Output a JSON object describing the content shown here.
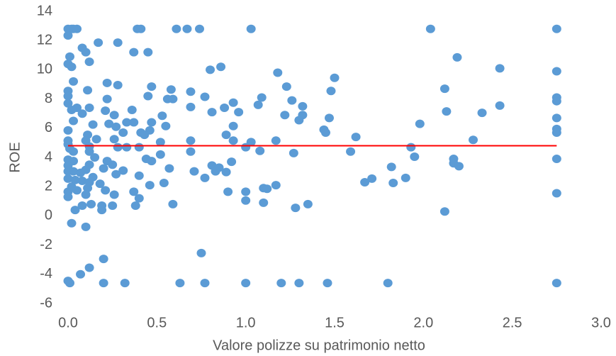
{
  "chart_data": {
    "type": "scatter",
    "x_label": "Valore polizze su patrimonio netto",
    "y_label": "ROE",
    "color": "#5b9bd5",
    "x": [
      0,
      0.02,
      0.03,
      0.05,
      0.39,
      0.41,
      0.61,
      0.67,
      0.74,
      1.03,
      2.04,
      2.75,
      0,
      0.17,
      0.28,
      0.08,
      0.1,
      0.37,
      0.45,
      0.01,
      0.12,
      0,
      0.02,
      0.86,
      0.8,
      2.19,
      2.43,
      2.75,
      1.18,
      1.5,
      0.03,
      0.22,
      0.28,
      1.23,
      0.47,
      0,
      0.11,
      0.58,
      0.69,
      1.48,
      2.12,
      0.45,
      0.77,
      0,
      0.22,
      0.56,
      0.59,
      1.09,
      2.75,
      2.75,
      0.93,
      0,
      1.26,
      1.32,
      2.43,
      0.05,
      0.12,
      0.36,
      0.69,
      0.88,
      1.07,
      0.02,
      0.21,
      2.13,
      2.33,
      0.08,
      0.81,
      0.96,
      0.53,
      1.22,
      1.32,
      0.26,
      0.03,
      1.47,
      2.75,
      1.3,
      0.33,
      0.37,
      0.47,
      0.14,
      0.23,
      0.55,
      1.98,
      0.93,
      0.27,
      0,
      2.75,
      2.75,
      1.44,
      1.45,
      0.46,
      0.31,
      0.41,
      0.11,
      0.43,
      0.89,
      1.62,
      0.16,
      0.26,
      0,
      0.1,
      0.52,
      0.69,
      0.93,
      1.03,
      1.17,
      2.28,
      0,
      0.12,
      0.28,
      0.33,
      0.4,
      1,
      1.93,
      0.01,
      0.03,
      0.12,
      0.69,
      1.08,
      1.27,
      1.59,
      0.52,
      0.15,
      1.95,
      0,
      0.44,
      2.17,
      2.75,
      0.03,
      0.22,
      0.47,
      0.92,
      2.17,
      0.12,
      0.25,
      0.81,
      2.2,
      0,
      1.82,
      0.2,
      0.57,
      0.85,
      0.1,
      0.31,
      0.71,
      0,
      0.03,
      0.83,
      0.89,
      0.27,
      0.07,
      0.4,
      0.14,
      0.77,
      1.71,
      0,
      1.9,
      0.04,
      0.08,
      0.12,
      0.54,
      1.67,
      1.83,
      1.17,
      0.18,
      0.46,
      0.02,
      1.1,
      1.12,
      0.11,
      0.21,
      0.37,
      0.9,
      1,
      0,
      0.05,
      2.75,
      0.26,
      0.1,
      0,
      0.4,
      1,
      1.1,
      1.35,
      0.59,
      0.08,
      0.13,
      0.19,
      0.38,
      0.25,
      1.28,
      0.04,
      0.19,
      2.12,
      0.02,
      0.1,
      0.75,
      0.2,
      0.12,
      0.07,
      0,
      0.01,
      0.2,
      0.32,
      0.63,
      0.77,
      1,
      1.2,
      1.3,
      1.46,
      1.8,
      2.75
    ],
    "values": [
      12.8,
      12.8,
      12.8,
      12.8,
      12.8,
      12.8,
      12.8,
      12.8,
      12.8,
      12.8,
      12.8,
      12.8,
      12.35,
      11.86,
      11.86,
      11.5,
      11.2,
      11.2,
      11.2,
      10.9,
      10.55,
      10.4,
      10.2,
      10.2,
      10,
      10.85,
      10.1,
      9.9,
      9.8,
      9.45,
      9.2,
      9.1,
      8.95,
      8.85,
      8.85,
      8.55,
      8.6,
      8.65,
      8.5,
      8.55,
      8.7,
      8.2,
      8.15,
      8.2,
      8,
      8,
      8,
      8.1,
      8.1,
      7.85,
      7.75,
      7.7,
      7.9,
      7.5,
      7.55,
      7.4,
      7.4,
      7.25,
      7.45,
      7.4,
      7.6,
      7.25,
      7.2,
      7.15,
      7.05,
      7,
      7.1,
      7.1,
      6.85,
      6.9,
      6.9,
      6.9,
      6.5,
      6.7,
      6.7,
      6.55,
      6.4,
      6.4,
      6.4,
      6.25,
      6.3,
      6.15,
      6.3,
      6.15,
      6.1,
      5.85,
      5.95,
      5.7,
      5.9,
      5.7,
      5.85,
      5.7,
      5.7,
      5.55,
      5.55,
      5.55,
      5.4,
      5.25,
      5.25,
      5.15,
      5.15,
      5.05,
      5.15,
      5.15,
      5.05,
      5.15,
      5.2,
      4.9,
      4.75,
      4.7,
      4.7,
      4.7,
      4.7,
      4.7,
      4.6,
      4.4,
      4.4,
      4.4,
      4.45,
      4.3,
      4.4,
      4.2,
      4,
      4.05,
      3.85,
      3.9,
      3.9,
      3.9,
      3.75,
      3.75,
      3.75,
      3.7,
      3.6,
      3.5,
      3.5,
      3.45,
      3.4,
      3.45,
      3.35,
      3.25,
      3.25,
      3.3,
      3.15,
      3.1,
      3.05,
      3.05,
      3.05,
      3.05,
      3,
      2.85,
      2.95,
      2.75,
      2.65,
      2.6,
      2.55,
      2.55,
      2.6,
      2.45,
      2.4,
      2.3,
      2.25,
      2.3,
      2.25,
      2.1,
      2.2,
      2.1,
      2,
      1.9,
      1.85,
      1.9,
      1.75,
      1.65,
      1.65,
      1.65,
      1.65,
      1.75,
      1.55,
      1.45,
      1.45,
      1.3,
      1.2,
      1.05,
      0.9,
      0.8,
      0.8,
      0.7,
      0.8,
      0.7,
      0.7,
      0.7,
      0.55,
      0.4,
      0.4,
      0.3,
      -0.5,
      -0.75,
      -2.55,
      -2.95,
      -3.55,
      -4,
      -4.45,
      -4.6,
      -4.6,
      -4.6,
      -4.6,
      -4.6,
      -4.6,
      -4.6,
      -4.6,
      -4.6,
      -4.6,
      -4.6
    ],
    "reference_line": {
      "y": 4.8,
      "x": [
        0,
        2.75
      ],
      "color": "#ff0000"
    },
    "xlim": [
      0,
      3
    ],
    "ylim": [
      -6,
      14
    ],
    "xticks": [
      {
        "value": 0,
        "label": "0.0"
      },
      {
        "value": 0.5,
        "label": "0.5"
      },
      {
        "value": 1,
        "label": "1.0"
      },
      {
        "value": 1.5,
        "label": "1.5"
      },
      {
        "value": 2,
        "label": "2.0"
      },
      {
        "value": 2.5,
        "label": "2.5"
      },
      {
        "value": 3,
        "label": "3.0"
      }
    ],
    "yticks": [
      -6,
      -4,
      -2,
      0,
      2,
      4,
      6,
      8,
      10,
      12,
      14
    ],
    "grid": false
  }
}
